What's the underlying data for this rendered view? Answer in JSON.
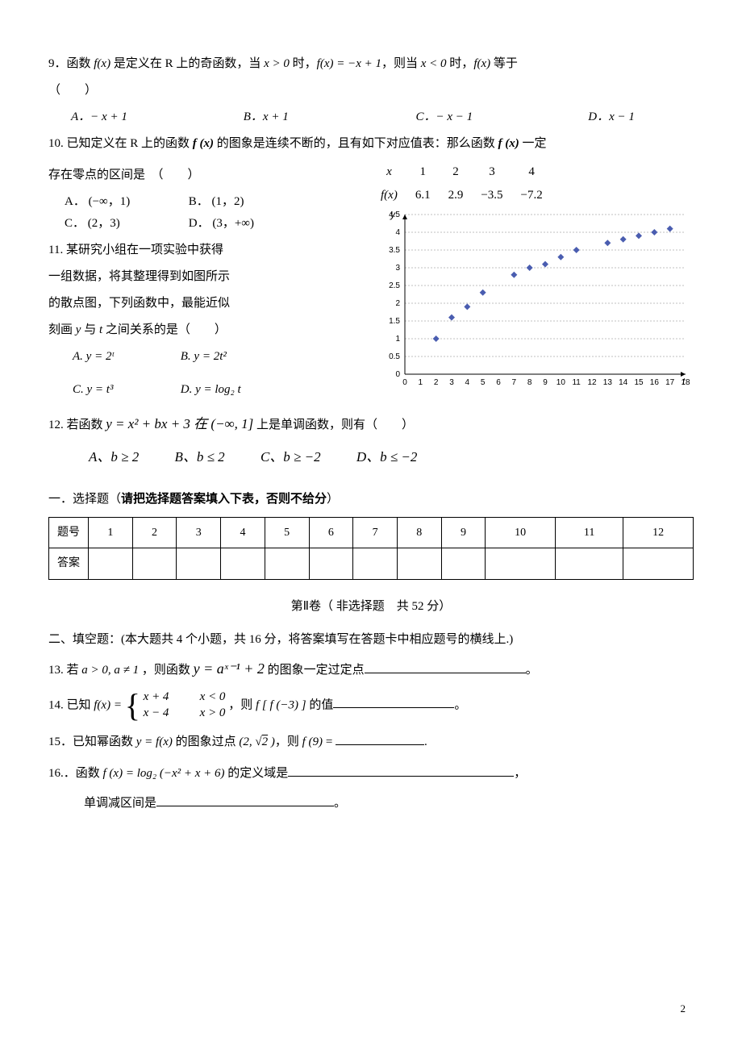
{
  "q9": {
    "text_pre": "9．函数 ",
    "fx": "f(x)",
    "text_mid1": " 是定义在 R 上的奇函数，当 ",
    "cond1": "x > 0",
    "text_mid2": " 时，",
    "eq1": "f(x) = −x + 1",
    "text_mid3": "，则当 ",
    "cond2": "x < 0",
    "text_mid4": " 时，",
    "fx2": "f(x)",
    "text_end": " 等于",
    "paren": "（　　）",
    "A": "A．− x + 1",
    "B": "B．x + 1",
    "C": "C．− x − 1",
    "D": "D．x − 1"
  },
  "q10": {
    "text_pre": "10. 已知定义在 R 上的函数 ",
    "fx": "f (x)",
    "text_mid": " 的图象是连续不断的，且有如下对应值表：那么函数 ",
    "fx2": "f (x)",
    "text_end": " 一定",
    "line2": "存在零点的区间是　（　　）",
    "A": "A．  (−∞，1)",
    "B": "B．  (1，2)",
    "C": "C．  (2，3)",
    "D": "D．  (3，+∞)",
    "table": {
      "xLabel": "x",
      "fxLabel": "f(x)",
      "x": [
        "1",
        "2",
        "3",
        "4"
      ],
      "fx": [
        "6.1",
        "2.9",
        "−3.5",
        "−7.2"
      ]
    }
  },
  "q11": {
    "l1": "11. 某研究小组在一项实验中获得",
    "l2": "一组数据，将其整理得到如图所示",
    "l3": "的散点图，下列函数中，最能近似",
    "l4_pre": "刻画 ",
    "y": "y",
    "l4_mid": " 与 ",
    "t": "t",
    "l4_end": " 之间关系的是（　　）",
    "A": "A.   y = 2ᵗ",
    "B": "B.   y = 2t²",
    "C": "C.   y = t³",
    "D": "D.   y = log₂ t",
    "chart": {
      "bg": "#ffffff",
      "grid": "#808080",
      "axis": "#000000",
      "dot_fill": "#4a5db0",
      "xlim": [
        0,
        18
      ],
      "ylim": [
        0,
        4.5
      ],
      "xticks": [
        0,
        1,
        2,
        3,
        4,
        5,
        6,
        7,
        8,
        9,
        10,
        11,
        12,
        13,
        14,
        15,
        16,
        17,
        18
      ],
      "yticks": [
        0,
        0.5,
        1,
        1.5,
        2,
        2.5,
        3,
        3.5,
        4,
        4.5
      ],
      "points": [
        [
          2,
          1
        ],
        [
          3,
          1.6
        ],
        [
          4,
          1.9
        ],
        [
          5,
          2.3
        ],
        [
          7,
          2.8
        ],
        [
          8,
          3.0
        ],
        [
          9,
          3.1
        ],
        [
          10,
          3.3
        ],
        [
          11,
          3.5
        ],
        [
          13,
          3.7
        ],
        [
          14,
          3.8
        ],
        [
          15,
          3.9
        ],
        [
          16,
          4.0
        ],
        [
          17,
          4.1
        ]
      ],
      "xlabel": "t",
      "ylabel": "y",
      "tick_font": 10
    }
  },
  "q12": {
    "pre": "12. 若函数 ",
    "eq": "y = x² + bx + 3 在 (−∞, 1]",
    "post": " 上是单调函数，则有（　　）",
    "A": "A、b ≥ 2",
    "B": "B、b ≤ 2",
    "C": "C、b ≥ −2",
    "D": "D、b ≤ −2"
  },
  "ans_hdr": "一．选择题（",
  "ans_bold": "请把选择题答案填入下表，否则不给分",
  "ans_hdr_end": "）",
  "ans_table": {
    "row1_label": "题号",
    "cols": [
      "1",
      "2",
      "3",
      "4",
      "5",
      "6",
      "7",
      "8",
      "9",
      "10",
      "11",
      "12"
    ],
    "row2_label": "答案"
  },
  "part2_title": "第Ⅱ卷（ 非选择题　共 52 分）",
  "fill_hdr": "二、填空题：(本大题共 4 个小题，共 16 分，将答案填写在答题卡中相应题号的横线上.)",
  "q13": {
    "pre": "13.  若 ",
    "cond": "a > 0, a ≠ 1",
    "mid": " ，则函数 ",
    "eq": "y = aˣ⁻¹ + 2",
    "post": " 的图象一定过定点",
    "blank_w": 200,
    "end": "。"
  },
  "q14": {
    "pre": "14.  已知 ",
    "fx": "f(x) = ",
    "r1l": "x + 4",
    "r1r": "x < 0",
    "r2l": "x − 4",
    "r2r": "x > 0",
    "mid": "，则 ",
    "ask": "f [ f (−3) ]",
    "post": " 的值",
    "blank_w": 150,
    "end": "。"
  },
  "q15": {
    "pre": "15．已知幂函数 ",
    "fn": "y = f(x)",
    "mid": " 的图象过点 ",
    "pt_open": "(2, ",
    "sqrt2": "2",
    "pt_close": " )",
    "post": "，则 ",
    "ask": "f (9)",
    "eq": " = ",
    "blank_w": 110,
    "end": "."
  },
  "q16": {
    "pre": "16.．函数 ",
    "fx": "f (x) = log₂ (−x² + x + 6)",
    "post": " 的定义域是",
    "blank_w1": 280,
    "end1": "，",
    "l2": "单调减区间是",
    "blank_w2": 220,
    "end2": "。"
  },
  "page_number": "2"
}
